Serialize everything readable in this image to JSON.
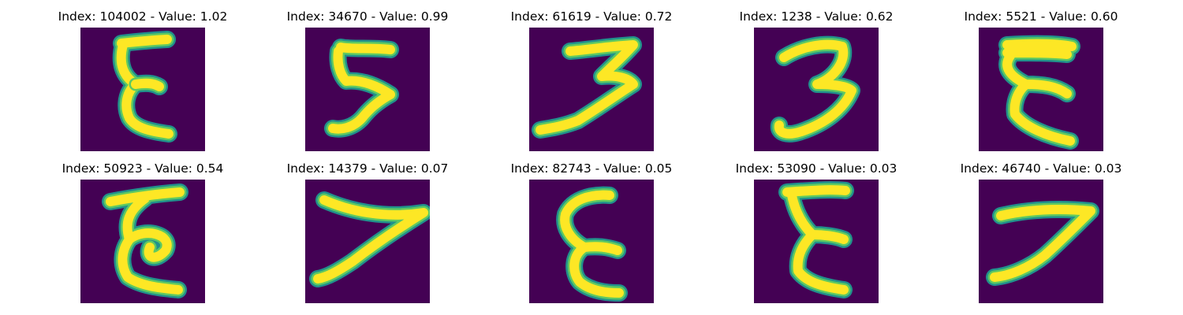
{
  "figure": {
    "colors": {
      "background": "#440154",
      "edge": "#21918c",
      "mid": "#5ec962",
      "high": "#fde725"
    },
    "panels": [
      {
        "title": "Index: 104002 - Value: 1.02",
        "glyph_icon": "handwritten-epsilon-glyph"
      },
      {
        "title": "Index: 34670 - Value: 0.99",
        "glyph_icon": "handwritten-five-glyph"
      },
      {
        "title": "Index: 61619 - Value: 0.72",
        "glyph_icon": "handwritten-three-glyph"
      },
      {
        "title": "Index: 1238 - Value: 0.62",
        "glyph_icon": "handwritten-three-glyph"
      },
      {
        "title": "Index: 5521 - Value: 0.60",
        "glyph_icon": "handwritten-epsilon-glyph"
      },
      {
        "title": "Index: 50923 - Value: 0.54",
        "glyph_icon": "handwritten-epsilon-loop-glyph"
      },
      {
        "title": "Index: 14379 - Value: 0.07",
        "glyph_icon": "handwritten-seven-glyph"
      },
      {
        "title": "Index: 82743 - Value: 0.05",
        "glyph_icon": "handwritten-epsilon-glyph"
      },
      {
        "title": "Index: 53090 - Value: 0.03",
        "glyph_icon": "handwritten-epsilon-glyph"
      },
      {
        "title": "Index: 46740 - Value: 0.03",
        "glyph_icon": "handwritten-seven-glyph"
      }
    ]
  }
}
